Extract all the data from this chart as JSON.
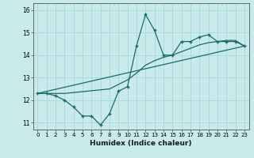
{
  "xlabel": "Humidex (Indice chaleur)",
  "bg_color": "#c8eaea",
  "line_color": "#1a6b6b",
  "grid_color": "#a8d8d8",
  "xlim": [
    -0.5,
    23.5
  ],
  "ylim": [
    10.7,
    16.3
  ],
  "yticks": [
    11,
    12,
    13,
    14,
    15,
    16
  ],
  "xticks": [
    0,
    1,
    2,
    3,
    4,
    5,
    6,
    7,
    8,
    9,
    10,
    11,
    12,
    13,
    14,
    15,
    16,
    17,
    18,
    19,
    20,
    21,
    22,
    23
  ],
  "series1_x": [
    0,
    1,
    2,
    3,
    4,
    5,
    6,
    7,
    8,
    9,
    10,
    11,
    12,
    13,
    14,
    15,
    16,
    17,
    18,
    19,
    20,
    21,
    22,
    23
  ],
  "series1_y": [
    12.3,
    12.3,
    12.2,
    12.0,
    11.7,
    11.3,
    11.3,
    10.9,
    11.4,
    12.4,
    12.6,
    14.4,
    15.8,
    15.1,
    14.0,
    14.0,
    14.6,
    14.6,
    14.8,
    14.9,
    14.6,
    14.6,
    14.6,
    14.4
  ],
  "series2_x": [
    0,
    2,
    3,
    8,
    9,
    10,
    11,
    12,
    13,
    14,
    15,
    16,
    17,
    18,
    19,
    20,
    21,
    22,
    23
  ],
  "series2_y": [
    12.3,
    12.3,
    12.3,
    12.5,
    12.7,
    12.9,
    13.2,
    13.55,
    13.75,
    13.9,
    14.0,
    14.15,
    14.3,
    14.45,
    14.55,
    14.6,
    14.65,
    14.65,
    14.4
  ],
  "series3_x": [
    0,
    23
  ],
  "series3_y": [
    12.3,
    14.4
  ]
}
